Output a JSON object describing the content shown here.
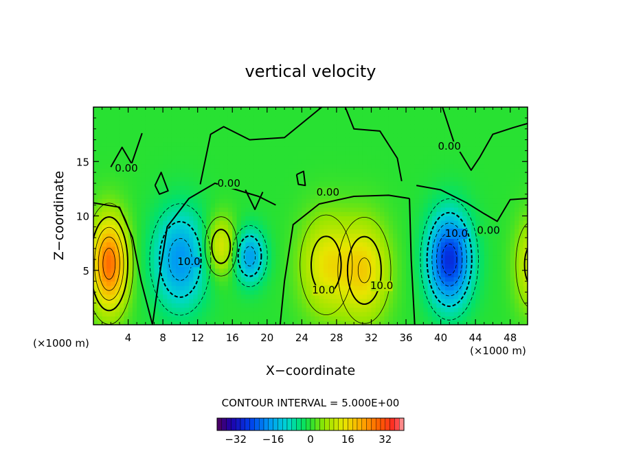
{
  "chart_data": {
    "type": "heatmap",
    "title": "vertical velocity",
    "xlabel": "X−coordinate",
    "ylabel": "Z−coordinate",
    "x_unit_left": "(×1000 m)",
    "x_unit_right": "(×1000 m)",
    "xlim": [
      0,
      50
    ],
    "ylim": [
      0,
      20
    ],
    "x_ticks": [
      4,
      8,
      12,
      16,
      20,
      24,
      28,
      32,
      36,
      40,
      44,
      48
    ],
    "y_ticks": [
      5,
      10,
      15
    ],
    "contour_interval_label": "CONTOUR INTERVAL = 5.000E+00",
    "contour_interval": 5,
    "colorbar": {
      "range": [
        -40,
        40
      ],
      "ticks": [
        -32,
        -16,
        0,
        16,
        32
      ],
      "tick_labels": [
        "−32",
        "−16",
        "0",
        "16",
        "32"
      ]
    },
    "contour_labels": [
      {
        "text": "0.00",
        "x": 3.8,
        "z": 14.2
      },
      {
        "text": "0.00",
        "x": 15.6,
        "z": 12.8
      },
      {
        "text": "0.00",
        "x": 27.0,
        "z": 12.0
      },
      {
        "text": "0.00",
        "x": 41.0,
        "z": 16.2
      },
      {
        "text": "0.00",
        "x": 45.5,
        "z": 8.5
      },
      {
        "text": "10.0",
        "x": 11.0,
        "z": 5.6
      },
      {
        "text": "10.0",
        "x": 26.5,
        "z": 3.0
      },
      {
        "text": "10.0",
        "x": 33.2,
        "z": 3.4
      },
      {
        "text": "10.0",
        "x": 41.8,
        "z": 8.2
      }
    ],
    "features": [
      {
        "sign": "up",
        "x": 1.8,
        "z": 5.6,
        "peak": 28,
        "sx": 1.5,
        "sz": 3.0
      },
      {
        "sign": "down",
        "x": 10.0,
        "z": 6.0,
        "peak": -18,
        "sx": 2.2,
        "sz": 3.2
      },
      {
        "sign": "up",
        "x": 14.7,
        "z": 7.2,
        "peak": 14,
        "sx": 1.3,
        "sz": 1.9
      },
      {
        "sign": "down",
        "x": 18.0,
        "z": 6.3,
        "peak": -17,
        "sx": 1.3,
        "sz": 1.8
      },
      {
        "sign": "up",
        "x": 26.8,
        "z": 5.5,
        "peak": 14,
        "sx": 2.1,
        "sz": 3.2
      },
      {
        "sign": "up",
        "x": 31.2,
        "z": 5.0,
        "peak": 16,
        "sx": 2.0,
        "sz": 3.2
      },
      {
        "sign": "down",
        "x": 41.0,
        "z": 6.0,
        "peak": -28,
        "sx": 1.8,
        "sz": 3.0
      },
      {
        "sign": "up",
        "x": 50.5,
        "z": 5.5,
        "peak": 12,
        "sx": 1.4,
        "sz": 3.0
      }
    ]
  }
}
